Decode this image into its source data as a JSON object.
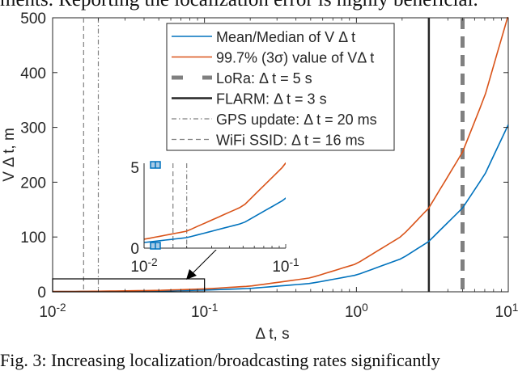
{
  "top_text": "ments. Reporting the localization error is highly beneficial.",
  "caption": "Fig. 3: Increasing localization/broadcasting rates significantly",
  "chart_data": {
    "type": "line",
    "xscale": "log",
    "xlabel": "Δ t, s",
    "ylabel": "V Δ t, m",
    "xlim": [
      0.01,
      10
    ],
    "ylim": [
      0,
      500
    ],
    "xticks": [
      {
        "v": 0.01,
        "b": "10",
        "e": "-2"
      },
      {
        "v": 0.1,
        "b": "10",
        "e": "-1"
      },
      {
        "v": 1,
        "b": "10",
        "e": "0"
      },
      {
        "v": 10,
        "b": "10",
        "e": "1"
      }
    ],
    "yticks": [
      0,
      100,
      200,
      300,
      400,
      500
    ],
    "series": [
      {
        "name": "Mean/Median of V Δ t",
        "color": "#0072BD",
        "x": [
          0.01,
          0.02,
          0.05,
          0.1,
          0.2,
          0.5,
          1,
          2,
          3,
          5,
          7,
          10
        ],
        "y": [
          0.35,
          0.65,
          1.55,
          3.05,
          6.1,
          15.3,
          30.5,
          61,
          92,
          153,
          214,
          305
        ]
      },
      {
        "name": "99.7% (3σ) value of VΔ t",
        "color": "#D95319",
        "x": [
          0.01,
          0.02,
          0.05,
          0.1,
          0.2,
          0.5,
          1,
          2,
          3,
          5,
          7,
          10
        ],
        "y": [
          0.55,
          1.05,
          2.6,
          5.2,
          10.3,
          25.5,
          51,
          102,
          153,
          255,
          357,
          505
        ]
      }
    ],
    "vlines": [
      {
        "name": "LoRa: Δ t = 5 s",
        "x": 5,
        "style": "thick-dash",
        "color": "#808080"
      },
      {
        "name": "FLARM: Δ t = 3 s",
        "x": 3,
        "style": "solid",
        "color": "#262626"
      },
      {
        "name": "GPS update: Δ t = 20 ms",
        "x": 0.02,
        "style": "dashdot",
        "color": "#808080"
      },
      {
        "name": "WiFi SSID: Δ t = 16 ms",
        "x": 0.016,
        "style": "dash",
        "color": "#808080"
      }
    ],
    "legend_position": "top-center",
    "inset": {
      "xlim": [
        0.01,
        0.1
      ],
      "ylim": [
        0,
        5
      ],
      "xticks": [
        {
          "v": 0.01,
          "b": "10",
          "e": "-2"
        },
        {
          "v": 0.1,
          "b": "10",
          "e": "-1"
        }
      ],
      "yticks": [
        0,
        5
      ]
    }
  }
}
